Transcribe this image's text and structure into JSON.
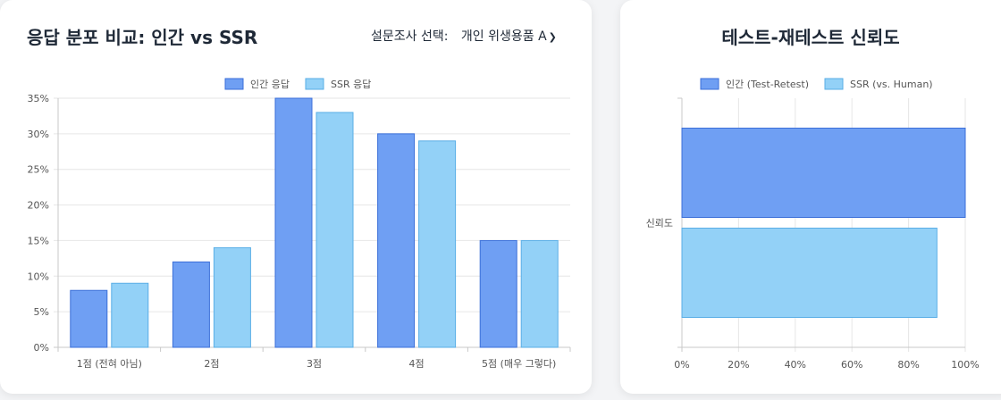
{
  "left_card": {
    "title": "응답 분포 비교: 인간 vs SSR",
    "selector_label": "설문조사 선택:",
    "selector_value": "개인 위생용품 A"
  },
  "right_card": {
    "title": "테스트-재테스트 신뢰도"
  },
  "chart_data": [
    {
      "type": "bar",
      "orientation": "vertical",
      "categories": [
        "1점 (전혀 아님)",
        "2점",
        "3점",
        "4점",
        "5점 (매우 그렇다)"
      ],
      "series": [
        {
          "name": "인간 응답",
          "values": [
            8,
            12,
            35,
            30,
            15
          ],
          "color": "#6f9ff3",
          "border": "#3b6fd8"
        },
        {
          "name": "SSR 응답",
          "values": [
            9,
            14,
            33,
            29,
            15
          ],
          "color": "#93d1f7",
          "border": "#5aaee6"
        }
      ],
      "yticks": [
        "0%",
        "5%",
        "10%",
        "15%",
        "20%",
        "25%",
        "30%",
        "35%"
      ],
      "ylim": [
        0,
        35
      ],
      "grid": true,
      "legend": "top"
    },
    {
      "type": "bar",
      "orientation": "horizontal",
      "categories": [
        "신뢰도"
      ],
      "series": [
        {
          "name": "인간 (Test-Retest)",
          "values": [
            100
          ],
          "color": "#6f9ff3",
          "border": "#3b6fd8"
        },
        {
          "name": "SSR (vs. Human)",
          "values": [
            90
          ],
          "color": "#93d1f7",
          "border": "#5aaee6"
        }
      ],
      "xticks": [
        "0%",
        "20%",
        "40%",
        "60%",
        "80%",
        "100%"
      ],
      "xlim": [
        0,
        100
      ],
      "grid": true,
      "legend": "top"
    }
  ]
}
